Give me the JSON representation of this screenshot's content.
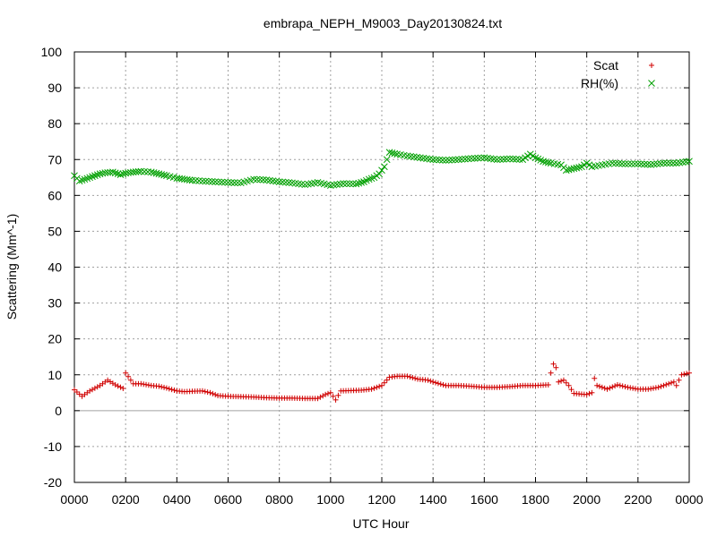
{
  "chart_data": {
    "type": "scatter",
    "title": "embrapa_NEPH_M9003_Day20130824.txt",
    "xlabel": "UTC Hour",
    "ylabel": "Scattering (Mm^-1)",
    "xlim": [
      0,
      2400
    ],
    "ylim": [
      -20,
      100
    ],
    "x_tick_labels": [
      "0000",
      "0200",
      "0400",
      "0600",
      "0800",
      "1000",
      "1200",
      "1400",
      "1600",
      "1800",
      "2000",
      "2200",
      "0000"
    ],
    "y_tick_labels": [
      "-20",
      "-10",
      "0",
      "10",
      "20",
      "30",
      "40",
      "50",
      "60",
      "70",
      "80",
      "90",
      "100"
    ],
    "grid": true,
    "legend_position": "top-right",
    "series": [
      {
        "name": "Scat",
        "marker": "plus",
        "color": "#d00000",
        "points": [
          [
            0,
            5.8
          ],
          [
            30,
            4.0
          ],
          [
            60,
            5.5
          ],
          [
            100,
            7.0
          ],
          [
            130,
            8.5
          ],
          [
            160,
            7.2
          ],
          [
            190,
            6.2
          ],
          [
            200,
            10.5
          ],
          [
            210,
            9.5
          ],
          [
            230,
            7.5
          ],
          [
            260,
            7.5
          ],
          [
            300,
            7.0
          ],
          [
            330,
            6.8
          ],
          [
            360,
            6.3
          ],
          [
            400,
            5.5
          ],
          [
            430,
            5.3
          ],
          [
            460,
            5.4
          ],
          [
            500,
            5.5
          ],
          [
            530,
            5.0
          ],
          [
            560,
            4.2
          ],
          [
            600,
            4.0
          ],
          [
            650,
            3.9
          ],
          [
            700,
            3.8
          ],
          [
            750,
            3.6
          ],
          [
            800,
            3.5
          ],
          [
            850,
            3.5
          ],
          [
            900,
            3.4
          ],
          [
            950,
            3.4
          ],
          [
            980,
            4.5
          ],
          [
            1000,
            5.0
          ],
          [
            1020,
            3.0
          ],
          [
            1040,
            5.5
          ],
          [
            1080,
            5.6
          ],
          [
            1120,
            5.7
          ],
          [
            1160,
            6.0
          ],
          [
            1200,
            7.0
          ],
          [
            1230,
            9.3
          ],
          [
            1260,
            9.6
          ],
          [
            1300,
            9.6
          ],
          [
            1340,
            8.8
          ],
          [
            1380,
            8.5
          ],
          [
            1400,
            8.0
          ],
          [
            1450,
            7.0
          ],
          [
            1500,
            7.0
          ],
          [
            1550,
            6.8
          ],
          [
            1600,
            6.5
          ],
          [
            1650,
            6.5
          ],
          [
            1700,
            6.7
          ],
          [
            1750,
            7.0
          ],
          [
            1800,
            7.0
          ],
          [
            1850,
            7.2
          ],
          [
            1860,
            10.5
          ],
          [
            1870,
            13.0
          ],
          [
            1880,
            12.0
          ],
          [
            1890,
            8.0
          ],
          [
            1910,
            8.5
          ],
          [
            1930,
            7.0
          ],
          [
            1950,
            4.8
          ],
          [
            1980,
            4.6
          ],
          [
            2000,
            4.5
          ],
          [
            2020,
            5.0
          ],
          [
            2030,
            9.0
          ],
          [
            2040,
            7.0
          ],
          [
            2080,
            6.0
          ],
          [
            2120,
            7.2
          ],
          [
            2160,
            6.5
          ],
          [
            2200,
            6.0
          ],
          [
            2240,
            6.0
          ],
          [
            2280,
            6.5
          ],
          [
            2320,
            7.5
          ],
          [
            2340,
            8.0
          ],
          [
            2350,
            7.0
          ],
          [
            2370,
            10.0
          ],
          [
            2400,
            10.5
          ]
        ]
      },
      {
        "name": "RH(%)",
        "marker": "cross",
        "color": "#00a000",
        "points": [
          [
            0,
            65.5
          ],
          [
            20,
            64.0
          ],
          [
            40,
            64.5
          ],
          [
            60,
            65.0
          ],
          [
            80,
            65.5
          ],
          [
            100,
            66.0
          ],
          [
            120,
            66.3
          ],
          [
            150,
            66.5
          ],
          [
            180,
            65.8
          ],
          [
            200,
            66.2
          ],
          [
            230,
            66.5
          ],
          [
            260,
            66.7
          ],
          [
            300,
            66.5
          ],
          [
            330,
            66.0
          ],
          [
            360,
            65.5
          ],
          [
            400,
            64.8
          ],
          [
            430,
            64.5
          ],
          [
            460,
            64.2
          ],
          [
            500,
            64.0
          ],
          [
            550,
            63.8
          ],
          [
            600,
            63.6
          ],
          [
            650,
            63.5
          ],
          [
            700,
            64.5
          ],
          [
            750,
            64.3
          ],
          [
            800,
            63.8
          ],
          [
            850,
            63.5
          ],
          [
            900,
            63.0
          ],
          [
            950,
            63.6
          ],
          [
            1000,
            62.8
          ],
          [
            1050,
            63.3
          ],
          [
            1100,
            63.2
          ],
          [
            1130,
            63.8
          ],
          [
            1150,
            64.5
          ],
          [
            1170,
            65.0
          ],
          [
            1190,
            66.0
          ],
          [
            1210,
            68.0
          ],
          [
            1220,
            70.0
          ],
          [
            1230,
            72.0
          ],
          [
            1260,
            71.5
          ],
          [
            1300,
            71.0
          ],
          [
            1350,
            70.5
          ],
          [
            1400,
            70.0
          ],
          [
            1450,
            69.8
          ],
          [
            1500,
            70.0
          ],
          [
            1550,
            70.3
          ],
          [
            1600,
            70.5
          ],
          [
            1650,
            70.0
          ],
          [
            1700,
            70.2
          ],
          [
            1750,
            70.0
          ],
          [
            1780,
            71.5
          ],
          [
            1800,
            70.5
          ],
          [
            1830,
            69.5
          ],
          [
            1860,
            69.0
          ],
          [
            1900,
            68.5
          ],
          [
            1920,
            67.0
          ],
          [
            1950,
            67.5
          ],
          [
            1980,
            68.0
          ],
          [
            2000,
            69.0
          ],
          [
            2020,
            68.0
          ],
          [
            2060,
            68.5
          ],
          [
            2100,
            69.0
          ],
          [
            2150,
            68.8
          ],
          [
            2200,
            68.8
          ],
          [
            2250,
            68.6
          ],
          [
            2300,
            69.0
          ],
          [
            2350,
            69.0
          ],
          [
            2400,
            69.5
          ]
        ]
      }
    ]
  }
}
